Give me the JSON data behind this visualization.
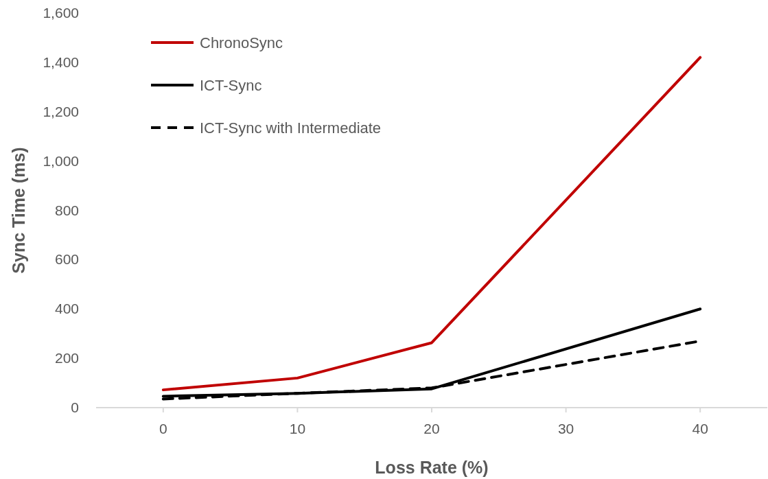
{
  "chart_data": {
    "type": "line",
    "xlabel": "Loss Rate (%)",
    "ylabel": "Sync Time (ms)",
    "x": [
      0,
      10,
      20,
      40
    ],
    "xlim": [
      -5,
      45
    ],
    "xticks": [
      0,
      10,
      20,
      30,
      40
    ],
    "ylim": [
      0,
      1600
    ],
    "yticks": [
      {
        "value": 0,
        "label": "0"
      },
      {
        "value": 200,
        "label": "200"
      },
      {
        "value": 400,
        "label": "400"
      },
      {
        "value": 600,
        "label": "600"
      },
      {
        "value": 800,
        "label": "800"
      },
      {
        "value": 1000,
        "label": "1,000"
      },
      {
        "value": 1200,
        "label": "1,200"
      },
      {
        "value": 1400,
        "label": "1,400"
      },
      {
        "value": 1600,
        "label": "1,600"
      }
    ],
    "grid": false,
    "legend": "top left",
    "marker": "none",
    "series": [
      {
        "name": "ChronoSync",
        "color": "#c00000",
        "values": [
          72,
          120,
          263,
          1420
        ],
        "line_style": "solid"
      },
      {
        "name": "ICT-Sync",
        "color": "#000000",
        "values": [
          46,
          58,
          76,
          400
        ],
        "line_style": "solid"
      },
      {
        "name": "ICT-Sync with Intermediate",
        "color": "#000000",
        "values": [
          35,
          58,
          80,
          270
        ],
        "line_style": "dashed"
      }
    ]
  }
}
